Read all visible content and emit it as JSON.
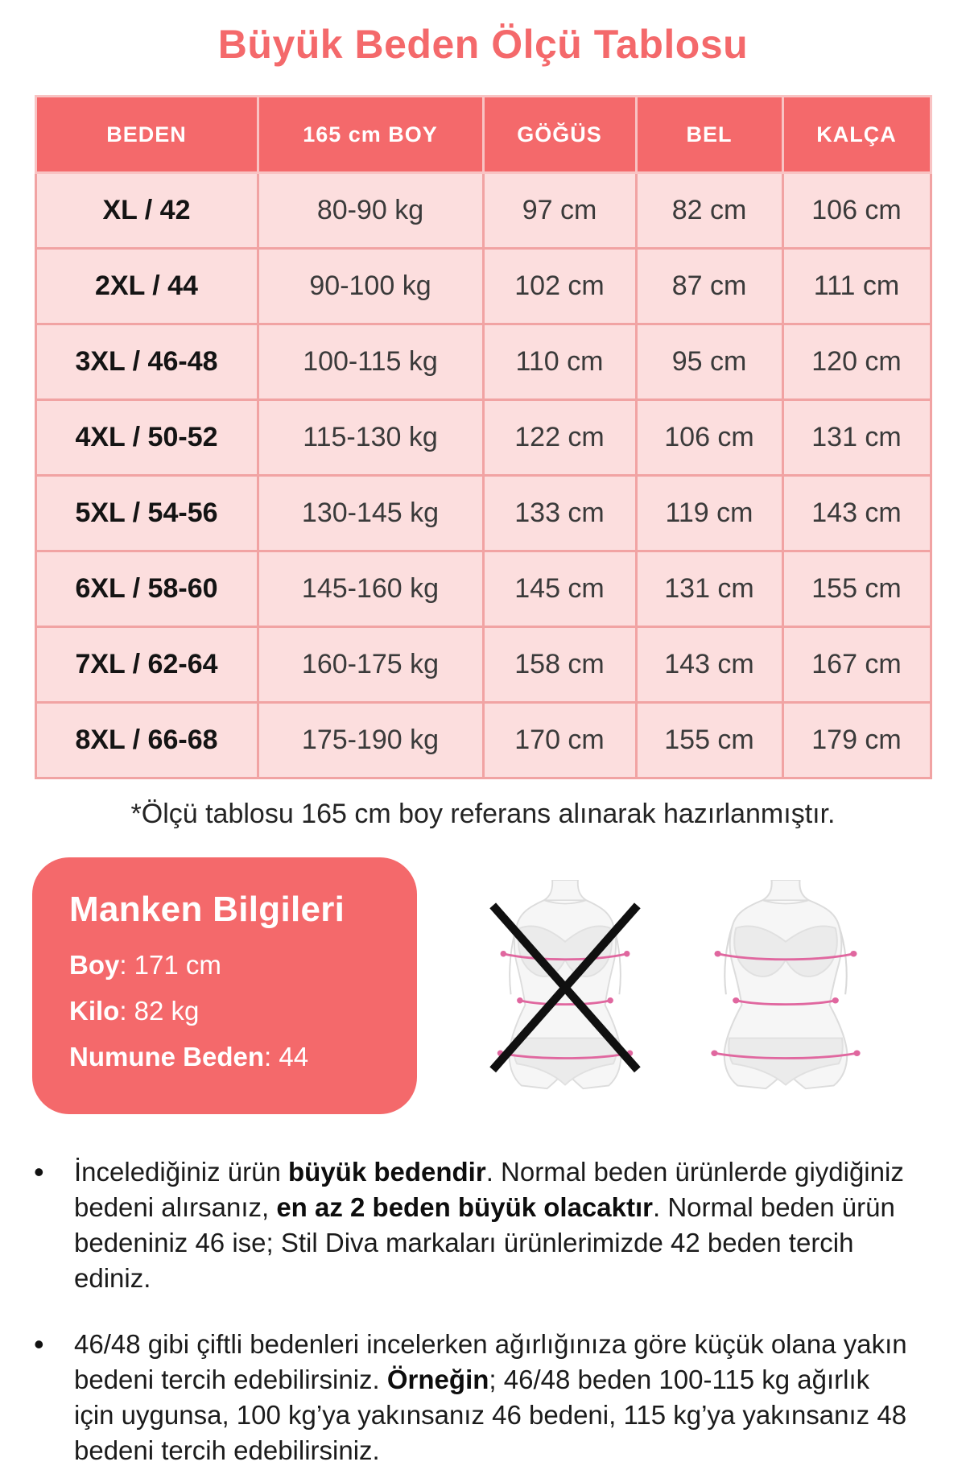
{
  "page": {
    "title": "Büyük Beden Ölçü Tablosu"
  },
  "table": {
    "headers": [
      "BEDEN",
      "165 cm BOY",
      "GÖĞÜS",
      "BEL",
      "KALÇA"
    ],
    "rows": [
      [
        "XL / 42",
        "80-90 kg",
        "97 cm",
        "82 cm",
        "106 cm"
      ],
      [
        "2XL / 44",
        "90-100 kg",
        "102 cm",
        "87 cm",
        "111 cm"
      ],
      [
        "3XL / 46-48",
        "100-115 kg",
        "110 cm",
        "95 cm",
        "120 cm"
      ],
      [
        "4XL / 50-52",
        "115-130 kg",
        "122 cm",
        "106 cm",
        "131 cm"
      ],
      [
        "5XL / 54-56",
        "130-145 kg",
        "133 cm",
        "119 cm",
        "143 cm"
      ],
      [
        "6XL / 58-60",
        "145-160 kg",
        "145 cm",
        "131 cm",
        "155 cm"
      ],
      [
        "7XL / 62-64",
        "160-175 kg",
        "158 cm",
        "143 cm",
        "167 cm"
      ],
      [
        "8XL / 66-68",
        "175-190 kg",
        "170 cm",
        "155 cm",
        "179 cm"
      ]
    ],
    "footnote": "*Ölçü tablosu 165 cm boy referans alınarak hazırlanmıştır."
  },
  "model_info": {
    "title": "Manken Bilgileri",
    "lines": [
      {
        "label": "Boy",
        "value": ": 171 cm"
      },
      {
        "label": "Kilo",
        "value": ": 82 kg"
      },
      {
        "label": "Numune Beden",
        "value": ": 44"
      }
    ]
  },
  "figures": {
    "wrong_figure": "slim-body-crossed-out",
    "correct_figure": "plus-size-body-with-measurements"
  },
  "notes": [
    {
      "segments": [
        {
          "text": "İncelediğiniz ürün ",
          "bold": false
        },
        {
          "text": "büyük bedendir",
          "bold": true
        },
        {
          "text": ". Normal beden ürünlerde giydiğiniz bedeni alırsanız, ",
          "bold": false
        },
        {
          "text": "en az 2 beden büyük olacaktır",
          "bold": true
        },
        {
          "text": ". Normal beden ürün bedeniniz 46 ise; Stil Diva markaları ürünlerimizde 42 beden tercih ediniz.",
          "bold": false
        }
      ]
    },
    {
      "segments": [
        {
          "text": "46/48 gibi çiftli bedenleri incelerken ağırlığınıza göre küçük olana yakın bedeni tercih edebilirsiniz. ",
          "bold": false
        },
        {
          "text": "Örneğin",
          "bold": true
        },
        {
          "text": "; 46/48 beden 100-115 kg ağırlık için uygunsa, 100 kg’ya yakınsanız 46 bedeni, 115 kg’ya yakınsanız 48 bedeni tercih edebilirsiniz.",
          "bold": false
        }
      ]
    }
  ],
  "colors": {
    "accent": "#f4696b",
    "cell": "#fcdede",
    "grid": "#f1a3a3",
    "grid-light": "#f8c3c3",
    "measure-line": "#e0679f"
  }
}
